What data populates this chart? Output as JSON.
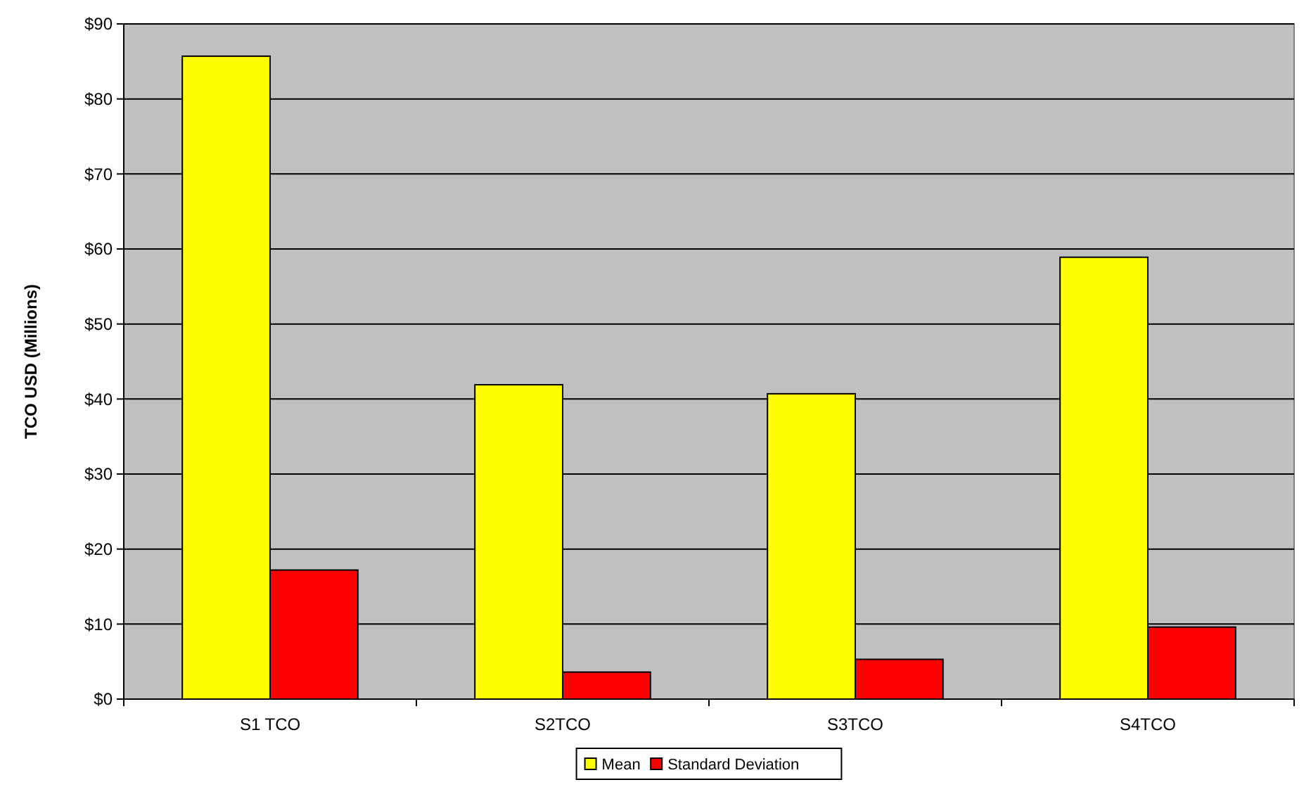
{
  "chart_data": {
    "type": "bar",
    "ylabel": "TCO USD (Millions)",
    "categories": [
      "S1 TCO",
      "S2TCO",
      "S3TCO",
      "S4TCO"
    ],
    "series": [
      {
        "name": "Mean",
        "color": "#ffff00",
        "values": [
          85.7,
          41.9,
          40.7,
          58.9
        ]
      },
      {
        "name": "Standard Deviation",
        "color": "#ff0000",
        "values": [
          17.2,
          3.6,
          5.3,
          9.6
        ]
      }
    ],
    "ylim": [
      0,
      90
    ],
    "yticks": [
      {
        "value": 0,
        "label": "$0"
      },
      {
        "value": 10,
        "label": "$10"
      },
      {
        "value": 20,
        "label": "$20"
      },
      {
        "value": 30,
        "label": "$30"
      },
      {
        "value": 40,
        "label": "$40"
      },
      {
        "value": 50,
        "label": "$50"
      },
      {
        "value": 60,
        "label": "$60"
      },
      {
        "value": 70,
        "label": "$70"
      },
      {
        "value": 80,
        "label": "$80"
      },
      {
        "value": 90,
        "label": "$90"
      }
    ],
    "grid": "y",
    "legend": "bottom"
  }
}
